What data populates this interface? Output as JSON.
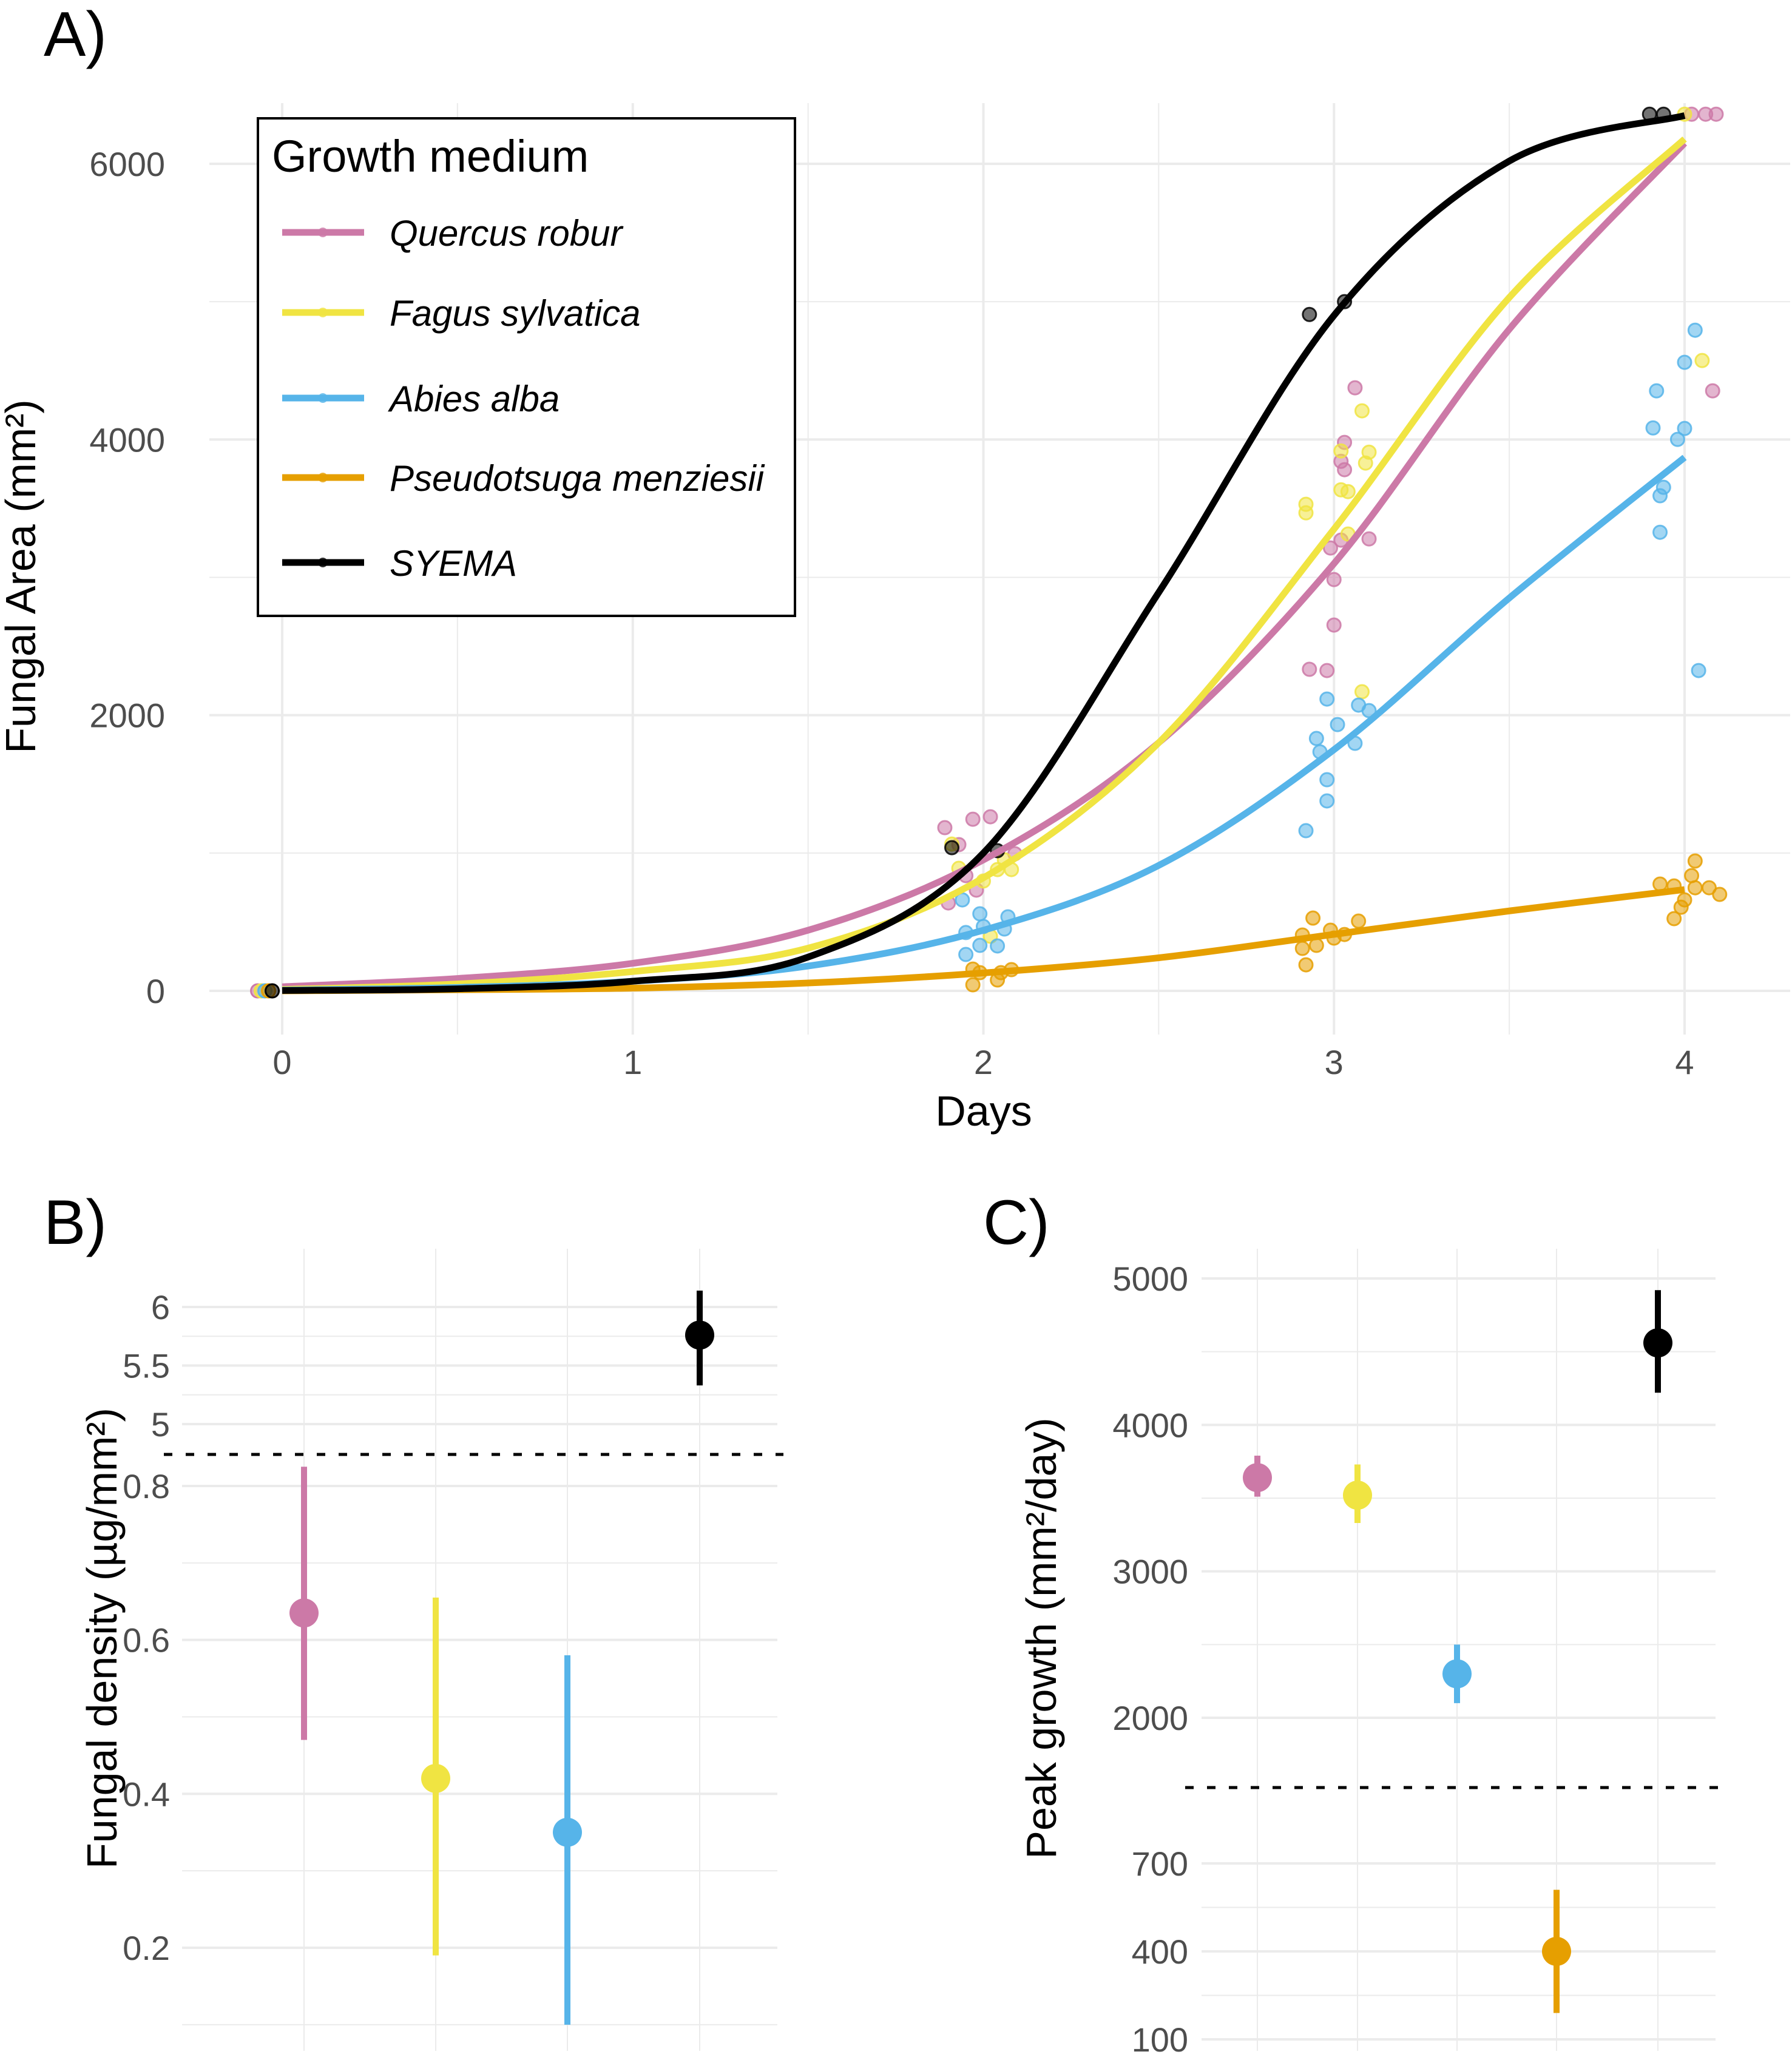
{
  "chart_data": [
    {
      "panel": "A)",
      "type": "line",
      "title": "",
      "xlabel": "Days",
      "ylabel": "Fungal Area (mm²)",
      "xlim": [
        -0.12,
        4.3
      ],
      "ylim": [
        -300,
        6600
      ],
      "x_ticks": [
        "0",
        "1",
        "2",
        "3",
        "4"
      ],
      "x_tick_values": [
        0,
        1,
        2,
        3,
        4
      ],
      "y_ticks": [
        "0",
        "2000",
        "4000",
        "6000"
      ],
      "y_tick_values": [
        0,
        2000,
        4000,
        6000
      ],
      "grid": true,
      "legend": {
        "title": "Growth medium",
        "placement": "top-left",
        "entries": [
          "Quercus robur",
          "Fagus sylvatica",
          "Abies alba",
          "Pseudotsuga menziesii",
          "SYEMA"
        ]
      },
      "curve_x": [
        0,
        0.5,
        1,
        1.5,
        2,
        2.5,
        3,
        3.5,
        4
      ],
      "series": [
        {
          "name": "Quercus robur",
          "color": "#CC79A7",
          "curve": [
            30,
            90,
            200,
            440,
            950,
            1800,
            3100,
            4800,
            6150
          ],
          "points": [
            [
              1.89,
              1184
            ],
            [
              1.97,
              1245
            ],
            [
              2.02,
              1263
            ],
            [
              1.93,
              1061
            ],
            [
              2.09,
              995
            ],
            [
              1.95,
              836
            ],
            [
              1.98,
              731
            ],
            [
              1.9,
              638
            ],
            [
              3.06,
              4375
            ],
            [
              3.03,
              3979
            ],
            [
              3.02,
              3842
            ],
            [
              3.03,
              3781
            ],
            [
              3.02,
              3270
            ],
            [
              3.1,
              3279
            ],
            [
              2.99,
              3213
            ],
            [
              3.0,
              2984
            ],
            [
              3.0,
              2654
            ],
            [
              2.93,
              2333
            ],
            [
              2.98,
              2324
            ],
            [
              4.08,
              4353
            ],
            [
              4.02,
              6360
            ],
            [
              4.06,
              6360
            ],
            [
              4.09,
              6360
            ]
          ]
        },
        {
          "name": "Fagus sylvatica",
          "color": "#F0E442",
          "curve": [
            10,
            50,
            140,
            310,
            820,
            1800,
            3350,
            5030,
            6180
          ],
          "points": [
            [
              1.91,
              1065
            ],
            [
              1.93,
              889
            ],
            [
              2.04,
              880
            ],
            [
              2.08,
              880
            ],
            [
              2.06,
              951
            ],
            [
              2.0,
              797
            ],
            [
              2.02,
              396
            ],
            [
              3.08,
              4208
            ],
            [
              3.02,
              3917
            ],
            [
              3.1,
              3908
            ],
            [
              3.09,
              3829
            ],
            [
              3.04,
              3622
            ],
            [
              3.02,
              3635
            ],
            [
              2.92,
              3530
            ],
            [
              2.92,
              3468
            ],
            [
              3.04,
              3314
            ],
            [
              3.08,
              2170
            ],
            [
              4.05,
              4573
            ],
            [
              4.0,
              6360
            ]
          ]
        },
        {
          "name": "Abies alba",
          "color": "#56B4E9",
          "curve": [
            5,
            25,
            70,
            180,
            440,
            910,
            1750,
            2850,
            3870
          ],
          "points": [
            [
              1.94,
              660
            ],
            [
              1.99,
              559
            ],
            [
              2.07,
              537
            ],
            [
              2.0,
              467
            ],
            [
              2.06,
              449
            ],
            [
              1.95,
              423
            ],
            [
              1.99,
              330
            ],
            [
              2.04,
              326
            ],
            [
              1.95,
              264
            ],
            [
              2.98,
              2117
            ],
            [
              3.07,
              2073
            ],
            [
              3.1,
              2033
            ],
            [
              3.01,
              1932
            ],
            [
              2.95,
              1831
            ],
            [
              2.96,
              1734
            ],
            [
              3.06,
              1796
            ],
            [
              2.98,
              1532
            ],
            [
              2.98,
              1378
            ],
            [
              2.92,
              1162
            ],
            [
              4.03,
              4793
            ],
            [
              4.0,
              4560
            ],
            [
              3.92,
              4353
            ],
            [
              3.91,
              4084
            ],
            [
              4.0,
              4080
            ],
            [
              3.98,
              4001
            ],
            [
              3.94,
              3653
            ],
            [
              3.93,
              3592
            ],
            [
              3.93,
              3327
            ],
            [
              4.04,
              2324
            ]
          ]
        },
        {
          "name": "Pseudotsuga menziesii",
          "color": "#E69F00",
          "curve": [
            0,
            8,
            20,
            57,
            130,
            240,
            410,
            580,
            735
          ],
          "points": [
            [
              1.97,
              158
            ],
            [
              1.99,
              132
            ],
            [
              2.05,
              132
            ],
            [
              2.08,
              154
            ],
            [
              1.97,
              44
            ],
            [
              2.04,
              79
            ],
            [
              2.94,
              528
            ],
            [
              3.07,
              506
            ],
            [
              2.91,
              405
            ],
            [
              2.99,
              440
            ],
            [
              3.03,
              409
            ],
            [
              3.0,
              383
            ],
            [
              2.91,
              308
            ],
            [
              2.95,
              330
            ],
            [
              2.92,
              189
            ],
            [
              4.03,
              942
            ],
            [
              4.02,
              836
            ],
            [
              3.93,
              775
            ],
            [
              3.97,
              761
            ],
            [
              4.03,
              748
            ],
            [
              4.07,
              748
            ],
            [
              4.1,
              700
            ],
            [
              4.0,
              660
            ],
            [
              3.99,
              607
            ],
            [
              3.97,
              524
            ]
          ]
        },
        {
          "name": "SYEMA",
          "color": "#000000",
          "curve": [
            3,
            15,
            70,
            245,
            1000,
            2890,
            4900,
            6020,
            6350
          ],
          "points": [
            [
              1.91,
              1039
            ],
            [
              2.04,
              1017
            ],
            [
              2.93,
              4907
            ],
            [
              3.03,
              5000
            ],
            [
              3.9,
              6360
            ],
            [
              3.94,
              6360
            ]
          ]
        }
      ],
      "day0_points": {
        "x": -0.07,
        "values": [
          0,
          0,
          0,
          0,
          0
        ]
      }
    },
    {
      "panel": "B)",
      "type": "scatter",
      "title": "",
      "xlabel": "",
      "ylabel": "Fungal density (µg/mm²)",
      "broken_axis": true,
      "upper_segment": {
        "ylim": [
          4.78,
          6.2
        ],
        "ticks": [
          "5",
          "5.5",
          "6"
        ],
        "tick_values": [
          5,
          5.5,
          6
        ]
      },
      "lower_segment": {
        "ylim": [
          0.1,
          0.83
        ],
        "ticks": [
          "0.2",
          "0.4",
          "0.6",
          "0.8"
        ],
        "tick_values": [
          0.2,
          0.4,
          0.6,
          0.8
        ]
      },
      "grid": true,
      "categories": [
        "Quercus robur",
        "Fagus sylvatica",
        "Abies alba",
        "SYEMA"
      ],
      "series": [
        {
          "name": "Quercus robur",
          "color": "#CC79A7",
          "estimate": 0.635,
          "lower": 0.47,
          "upper": 0.825,
          "segment": "lower"
        },
        {
          "name": "Fagus sylvatica",
          "color": "#F0E442",
          "estimate": 0.42,
          "lower": 0.19,
          "upper": 0.655,
          "segment": "lower"
        },
        {
          "name": "Abies alba",
          "color": "#56B4E9",
          "estimate": 0.35,
          "lower": 0.1,
          "upper": 0.58,
          "segment": "lower"
        },
        {
          "name": "SYEMA",
          "color": "#000000",
          "estimate": 5.76,
          "lower": 5.33,
          "upper": 6.14,
          "segment": "upper"
        }
      ]
    },
    {
      "panel": "C)",
      "type": "scatter",
      "title": "",
      "xlabel": "",
      "ylabel": "Peak growth (mm²/day)",
      "broken_axis": true,
      "upper_segment": {
        "ylim": [
          1530,
          5200
        ],
        "ticks": [
          "2000",
          "3000",
          "4000",
          "5000"
        ],
        "tick_values": [
          2000,
          3000,
          4000,
          5000
        ]
      },
      "lower_segment": {
        "ylim": [
          100,
          860
        ],
        "ticks": [
          "100",
          "400",
          "700"
        ],
        "tick_values": [
          100,
          400,
          700
        ]
      },
      "grid": true,
      "categories": [
        "Quercus robur",
        "Fagus sylvatica",
        "Abies alba",
        "Pseudotsuga menziesii",
        "SYEMA"
      ],
      "series": [
        {
          "name": "Quercus robur",
          "color": "#CC79A7",
          "estimate": 3640,
          "lower": 3510,
          "upper": 3790,
          "segment": "upper"
        },
        {
          "name": "Fagus sylvatica",
          "color": "#F0E442",
          "estimate": 3520,
          "lower": 3330,
          "upper": 3730,
          "segment": "upper"
        },
        {
          "name": "Abies alba",
          "color": "#56B4E9",
          "estimate": 2300,
          "lower": 2100,
          "upper": 2500,
          "segment": "upper"
        },
        {
          "name": "Pseudotsuga menziesii",
          "color": "#E69F00",
          "estimate": 400,
          "lower": 190,
          "upper": 610,
          "segment": "lower"
        },
        {
          "name": "SYEMA",
          "color": "#000000",
          "estimate": 4560,
          "lower": 4220,
          "upper": 4920,
          "segment": "upper"
        }
      ]
    }
  ]
}
